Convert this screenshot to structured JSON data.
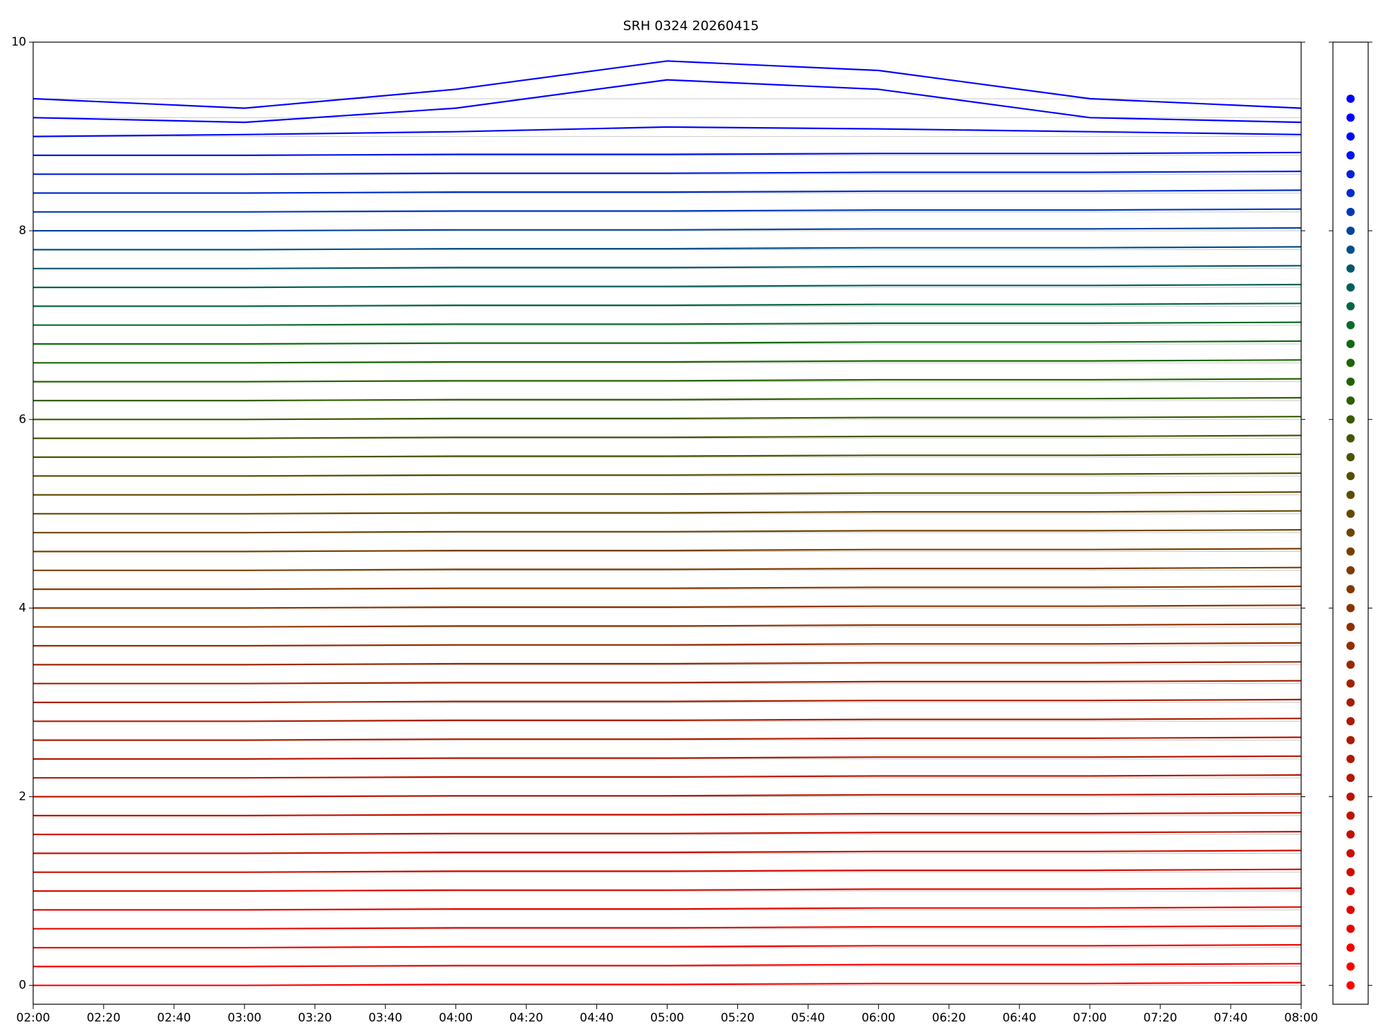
{
  "chart_data": {
    "type": "line",
    "title": "SRH 0324 20260415",
    "x": [
      "02:00",
      "03:00",
      "04:00",
      "05:00",
      "06:00",
      "07:00",
      "08:00"
    ],
    "xlim": [
      "02:00",
      "08:00"
    ],
    "xticks": [
      "02:00",
      "02:20",
      "02:40",
      "03:00",
      "03:20",
      "03:40",
      "04:00",
      "04:20",
      "04:40",
      "05:00",
      "05:20",
      "05:40",
      "06:00",
      "06:20",
      "06:40",
      "07:00",
      "07:20",
      "07:40",
      "08:00"
    ],
    "ylim": [
      -0.2,
      10
    ],
    "yticks": [
      0,
      2,
      4,
      6,
      8,
      10
    ],
    "grid": true,
    "series": [
      {
        "color": "#ff0000",
        "values": [
          0,
          0,
          0.01,
          0.01,
          0.02,
          0.02,
          0.03
        ]
      },
      {
        "color": "#f80200",
        "values": [
          0.2,
          0.2,
          0.21,
          0.21,
          0.22,
          0.22,
          0.23
        ]
      },
      {
        "color": "#f00400",
        "values": [
          0.4,
          0.4,
          0.41,
          0.41,
          0.42,
          0.42,
          0.43
        ]
      },
      {
        "color": "#e80600",
        "values": [
          0.6,
          0.6,
          0.61,
          0.61,
          0.62,
          0.62,
          0.63
        ]
      },
      {
        "color": "#e00800",
        "values": [
          0.8,
          0.8,
          0.81,
          0.81,
          0.82,
          0.82,
          0.83
        ]
      },
      {
        "color": "#d80a00",
        "values": [
          1.0,
          1.0,
          1.01,
          1.01,
          1.02,
          1.02,
          1.03
        ]
      },
      {
        "color": "#d00c00",
        "values": [
          1.2,
          1.2,
          1.21,
          1.21,
          1.22,
          1.22,
          1.23
        ]
      },
      {
        "color": "#c80e00",
        "values": [
          1.4,
          1.4,
          1.41,
          1.41,
          1.42,
          1.42,
          1.43
        ]
      },
      {
        "color": "#c41000",
        "values": [
          1.6,
          1.6,
          1.61,
          1.61,
          1.62,
          1.62,
          1.63
        ]
      },
      {
        "color": "#c01200",
        "values": [
          1.8,
          1.8,
          1.81,
          1.81,
          1.82,
          1.82,
          1.83
        ]
      },
      {
        "color": "#bb1400",
        "values": [
          2.0,
          2.0,
          2.01,
          2.01,
          2.02,
          2.02,
          2.03
        ]
      },
      {
        "color": "#b61600",
        "values": [
          2.2,
          2.2,
          2.21,
          2.21,
          2.22,
          2.22,
          2.23
        ]
      },
      {
        "color": "#b21800",
        "values": [
          2.4,
          2.4,
          2.41,
          2.41,
          2.42,
          2.42,
          2.43
        ]
      },
      {
        "color": "#ad1a00",
        "values": [
          2.6,
          2.6,
          2.61,
          2.61,
          2.62,
          2.62,
          2.63
        ]
      },
      {
        "color": "#a81c00",
        "values": [
          2.8,
          2.8,
          2.81,
          2.81,
          2.82,
          2.82,
          2.83
        ]
      },
      {
        "color": "#a41f00",
        "values": [
          3.0,
          3.0,
          3.01,
          3.01,
          3.02,
          3.02,
          3.03
        ]
      },
      {
        "color": "#9f2300",
        "values": [
          3.2,
          3.2,
          3.21,
          3.21,
          3.22,
          3.22,
          3.23
        ]
      },
      {
        "color": "#9a2700",
        "values": [
          3.4,
          3.4,
          3.41,
          3.41,
          3.42,
          3.42,
          3.43
        ]
      },
      {
        "color": "#952b00",
        "values": [
          3.6,
          3.6,
          3.61,
          3.61,
          3.62,
          3.62,
          3.63
        ]
      },
      {
        "color": "#8f3000",
        "values": [
          3.8,
          3.8,
          3.81,
          3.81,
          3.82,
          3.82,
          3.83
        ]
      },
      {
        "color": "#893400",
        "values": [
          4.0,
          4.0,
          4.01,
          4.01,
          4.02,
          4.02,
          4.03
        ]
      },
      {
        "color": "#833800",
        "values": [
          4.2,
          4.2,
          4.21,
          4.21,
          4.22,
          4.22,
          4.23
        ]
      },
      {
        "color": "#7d3c00",
        "values": [
          4.4,
          4.4,
          4.41,
          4.41,
          4.42,
          4.42,
          4.43
        ]
      },
      {
        "color": "#764000",
        "values": [
          4.6,
          4.6,
          4.61,
          4.61,
          4.62,
          4.62,
          4.63
        ]
      },
      {
        "color": "#6e4400",
        "values": [
          4.8,
          4.8,
          4.81,
          4.81,
          4.82,
          4.82,
          4.83
        ]
      },
      {
        "color": "#664800",
        "values": [
          5.0,
          5.0,
          5.01,
          5.01,
          5.02,
          5.02,
          5.03
        ]
      },
      {
        "color": "#5e4c00",
        "values": [
          5.2,
          5.2,
          5.21,
          5.21,
          5.22,
          5.22,
          5.23
        ]
      },
      {
        "color": "#554f00",
        "values": [
          5.4,
          5.4,
          5.41,
          5.41,
          5.42,
          5.42,
          5.43
        ]
      },
      {
        "color": "#4c5200",
        "values": [
          5.6,
          5.6,
          5.61,
          5.61,
          5.62,
          5.62,
          5.63
        ]
      },
      {
        "color": "#425600",
        "values": [
          5.8,
          5.8,
          5.81,
          5.81,
          5.82,
          5.82,
          5.83
        ]
      },
      {
        "color": "#385a00",
        "values": [
          6.0,
          6.0,
          6.01,
          6.01,
          6.02,
          6.02,
          6.03
        ]
      },
      {
        "color": "#2e5e00",
        "values": [
          6.2,
          6.2,
          6.21,
          6.21,
          6.22,
          6.22,
          6.23
        ]
      },
      {
        "color": "#246200",
        "values": [
          6.4,
          6.4,
          6.41,
          6.41,
          6.42,
          6.42,
          6.43
        ]
      },
      {
        "color": "#1a6600",
        "values": [
          6.6,
          6.6,
          6.61,
          6.61,
          6.62,
          6.62,
          6.63
        ]
      },
      {
        "color": "#106a10",
        "values": [
          6.8,
          6.8,
          6.81,
          6.81,
          6.82,
          6.82,
          6.83
        ]
      },
      {
        "color": "#086a28",
        "values": [
          7.0,
          7.0,
          7.01,
          7.01,
          7.02,
          7.02,
          7.03
        ]
      },
      {
        "color": "#046640",
        "values": [
          7.2,
          7.2,
          7.21,
          7.21,
          7.22,
          7.22,
          7.23
        ]
      },
      {
        "color": "#026058",
        "values": [
          7.4,
          7.4,
          7.41,
          7.41,
          7.42,
          7.42,
          7.43
        ]
      },
      {
        "color": "#025870",
        "values": [
          7.6,
          7.6,
          7.61,
          7.61,
          7.62,
          7.62,
          7.63
        ]
      },
      {
        "color": "#025088",
        "values": [
          7.8,
          7.8,
          7.81,
          7.81,
          7.82,
          7.82,
          7.83
        ]
      },
      {
        "color": "#0244a0",
        "values": [
          8.0,
          8.0,
          8.01,
          8.01,
          8.02,
          8.02,
          8.03
        ]
      },
      {
        "color": "#0238b8",
        "values": [
          8.2,
          8.2,
          8.21,
          8.21,
          8.22,
          8.22,
          8.23
        ]
      },
      {
        "color": "#022ccc",
        "values": [
          8.4,
          8.4,
          8.41,
          8.41,
          8.42,
          8.42,
          8.43
        ]
      },
      {
        "color": "#0220dc",
        "values": [
          8.6,
          8.6,
          8.61,
          8.61,
          8.62,
          8.62,
          8.63
        ]
      },
      {
        "color": "#0214ea",
        "values": [
          8.8,
          8.8,
          8.81,
          8.81,
          8.82,
          8.82,
          8.83
        ]
      },
      {
        "color": "#0008f8",
        "values": [
          9.0,
          9.02,
          9.05,
          9.1,
          9.08,
          9.05,
          9.02
        ]
      },
      {
        "color": "#0000ff",
        "values": [
          9.2,
          9.15,
          9.3,
          9.6,
          9.5,
          9.2,
          9.15
        ]
      },
      {
        "color": "#0000ff",
        "values": [
          9.4,
          9.3,
          9.5,
          9.8,
          9.7,
          9.4,
          9.3
        ]
      }
    ]
  }
}
